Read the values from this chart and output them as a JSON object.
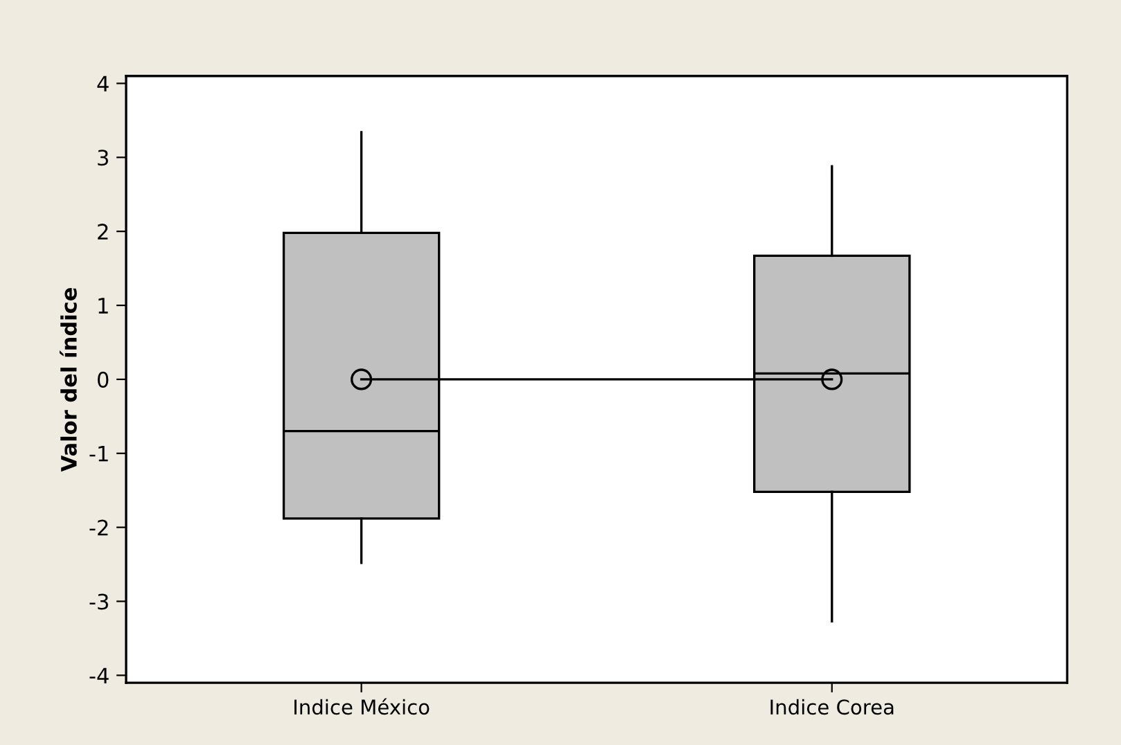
{
  "chart_data": {
    "type": "box",
    "ylabel": "Valor del índice",
    "categories": [
      "Indice México",
      "Indice Corea"
    ],
    "boxes": [
      {
        "low": -2.48,
        "q1": -1.88,
        "median": -0.7,
        "q3": 1.98,
        "high": 3.34,
        "mean": 0
      },
      {
        "low": -3.27,
        "q1": -1.52,
        "median": 0.08,
        "q3": 1.67,
        "high": 2.88,
        "mean": 0
      }
    ],
    "color": "#c0c0c0",
    "series": [
      {
        "type": "line",
        "color": "#000000",
        "values": [
          0,
          0
        ]
      }
    ],
    "ylim": [
      -4.1,
      4.1
    ],
    "yticks": [
      -4,
      -3,
      -2,
      -1,
      0,
      1,
      2,
      3,
      4
    ],
    "grid": false,
    "legend": false
  }
}
